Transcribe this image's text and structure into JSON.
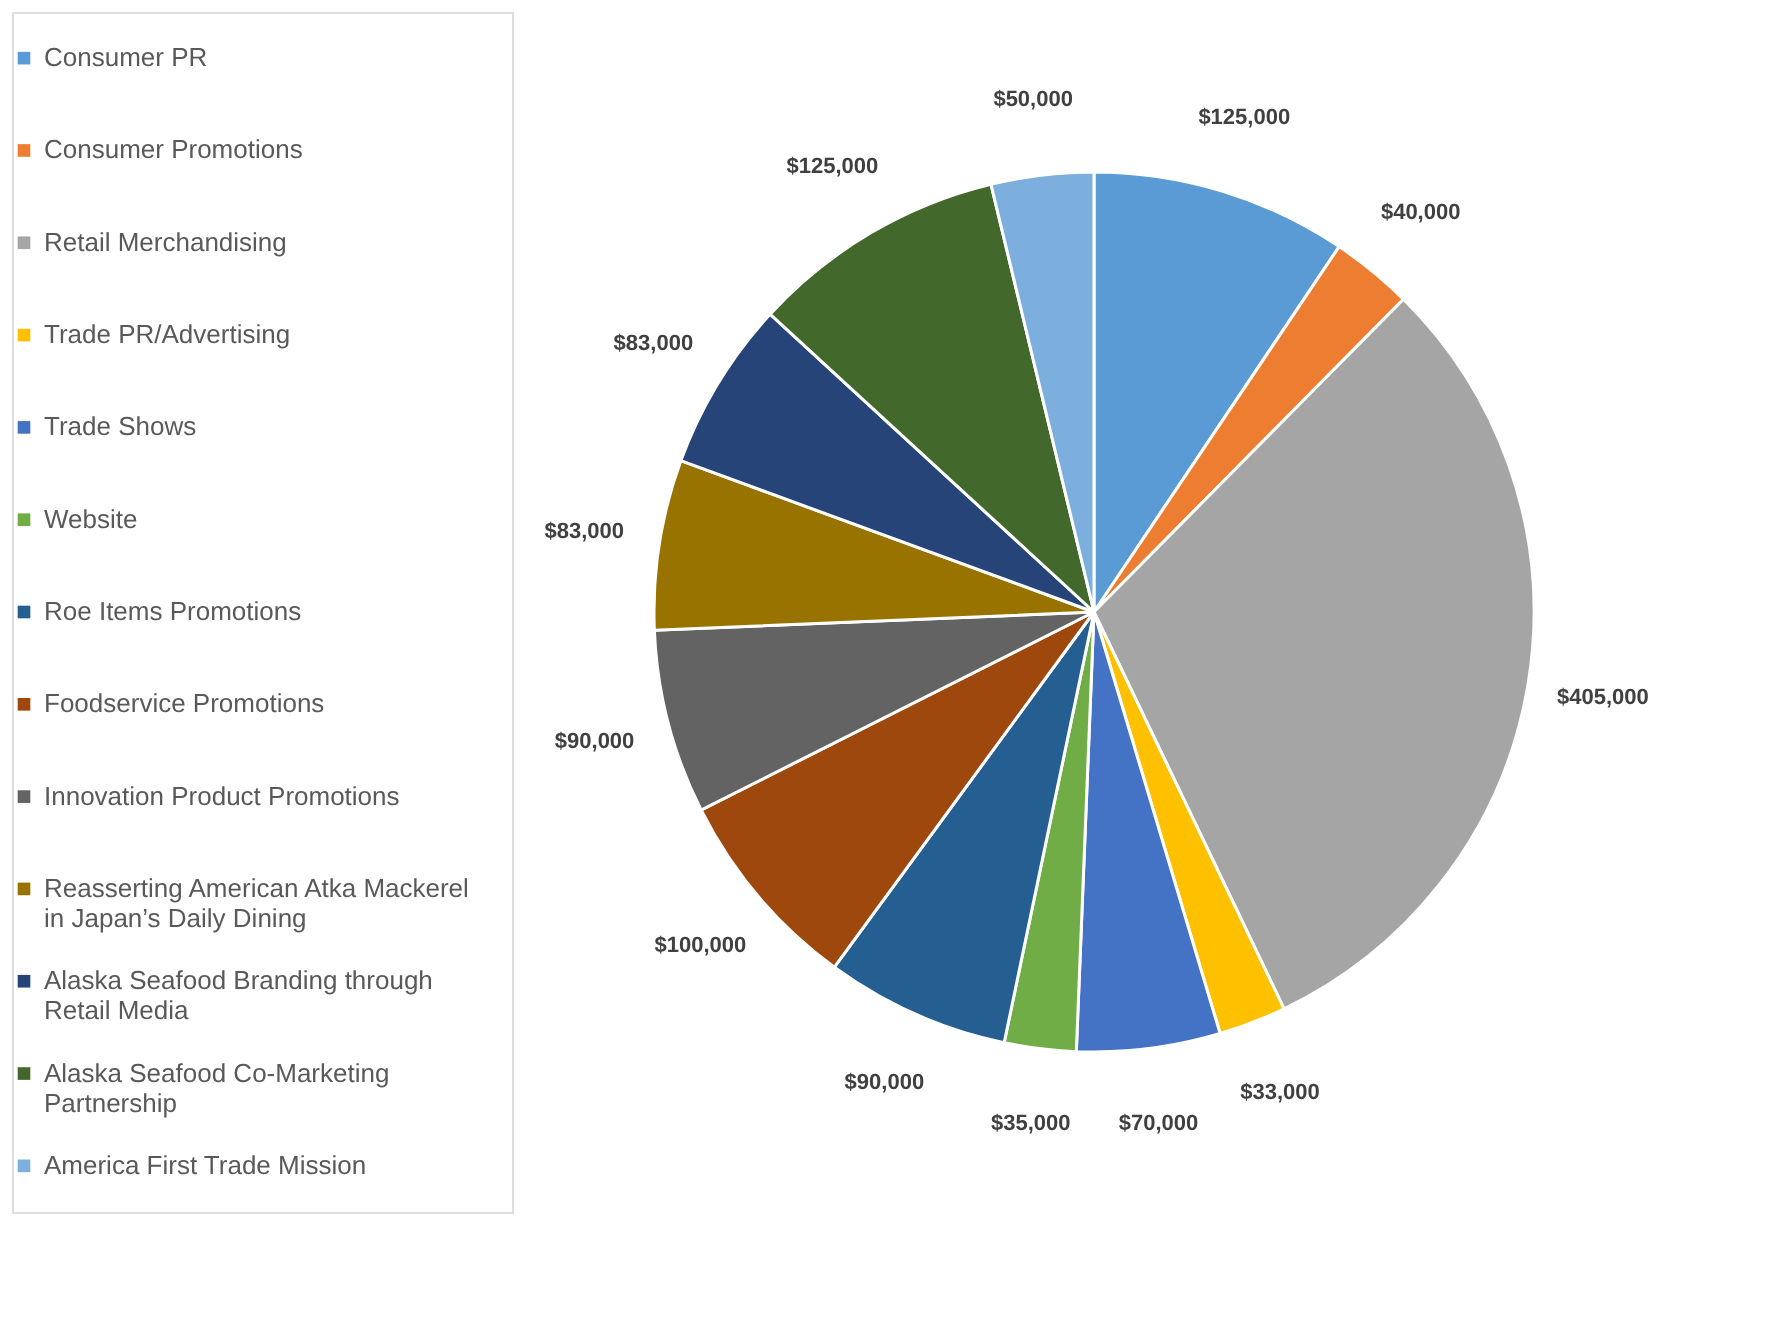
{
  "chart_data": {
    "type": "pie",
    "legend": "left",
    "categories": [
      "Consumer PR",
      "Consumer Promotions",
      "Retail Merchandising",
      "Trade PR/Advertising",
      "Trade Shows",
      "Website",
      "Roe Items Promotions",
      "Foodservice Promotions",
      "Innovation Product Promotions",
      "Reasserting American Atka Mackerel in Japan’s Daily Dining",
      "Alaska Seafood Branding through Retail Media",
      "Alaska Seafood Co-Marketing Partnership",
      "America First Trade Mission"
    ],
    "values": [
      125000,
      40000,
      405000,
      33000,
      70000,
      35000,
      90000,
      100000,
      90000,
      83000,
      83000,
      125000,
      50000
    ],
    "value_labels": [
      "$125,000",
      "$40,000",
      "$405,000",
      "$33,000",
      "$70,000",
      "$35,000",
      "$90,000",
      "$100,000",
      "$90,000",
      "$83,000",
      "$83,000",
      "$125,000",
      "$50,000"
    ],
    "colors": [
      "#5b9bd5",
      "#ed7d31",
      "#a5a5a5",
      "#ffc000",
      "#4472c4",
      "#70ad47",
      "#255e91",
      "#9e480e",
      "#636363",
      "#997300",
      "#264478",
      "#43682b",
      "#7cafdd"
    ]
  }
}
